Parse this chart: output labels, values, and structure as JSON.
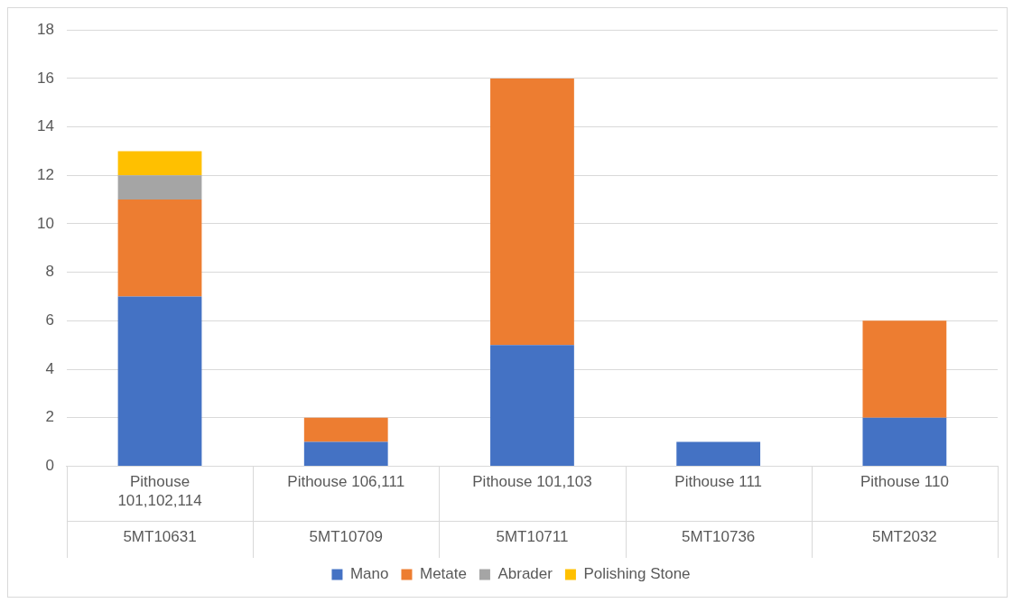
{
  "chart_data": {
    "type": "bar",
    "stacked": true,
    "categories": [
      "Pithouse 101,102,114\n5MT10631",
      "Pithouse 106,111\n5MT10709",
      "Pithouse 101,103\n5MT10711",
      "Pithouse 111\n5MT10736",
      "Pithouse 110\n5MT2032"
    ],
    "series": [
      {
        "name": "Mano",
        "color": "#4472c4",
        "values": [
          7,
          1,
          5,
          1,
          2
        ]
      },
      {
        "name": "Metate",
        "color": "#ed7d31",
        "values": [
          4,
          1,
          11,
          0,
          4
        ]
      },
      {
        "name": "Abrader",
        "color": "#a5a5a5",
        "values": [
          1,
          0,
          0,
          0,
          0
        ]
      },
      {
        "name": "Polishing Stone",
        "color": "#ffc000",
        "values": [
          1,
          0,
          0,
          0,
          0
        ]
      }
    ],
    "ylim": [
      0,
      18
    ],
    "yticks": [
      0,
      2,
      4,
      6,
      8,
      10,
      12,
      14,
      16,
      18
    ],
    "grid": "y",
    "legend": "bottom"
  }
}
